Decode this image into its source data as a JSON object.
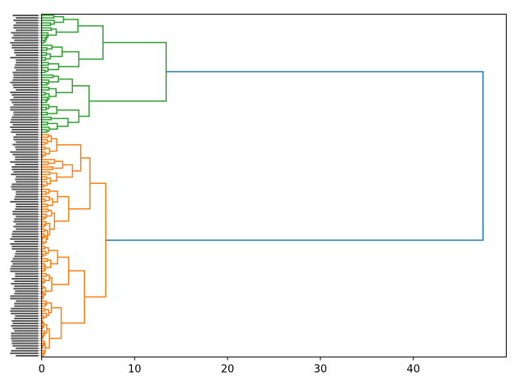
{
  "chart_data": {
    "type": "dendrogram",
    "orientation": "left",
    "title": "",
    "xlabel": "",
    "ylabel": "",
    "xlim": [
      0,
      50
    ],
    "x_ticks": [
      0,
      10,
      20,
      30,
      40
    ],
    "x_tick_labels": [
      "0",
      "10",
      "20",
      "30",
      "40"
    ],
    "grid": false,
    "leaf_labels_note": "",
    "colors": {
      "cluster_1": "#2ca02c",
      "cluster_2": "#ff7f0e",
      "above_threshold": "#1f77b4",
      "axes": "#000000"
    },
    "clusters": [
      {
        "name": "",
        "color": "#2ca02c",
        "n_leaves": 48,
        "merge_height": 13.4,
        "subclusters": [
          {
            "merge_height": 6.6,
            "children": [
              3.9,
              4.0
            ]
          },
          {
            "merge_height": 5.1,
            "children": [
              3.3,
              4.0
            ]
          }
        ]
      },
      {
        "name": "",
        "color": "#ff7f0e",
        "n_leaves": 90,
        "merge_height": 6.9,
        "subclusters": [
          {
            "merge_height": 5.2,
            "children": [
              4.2,
              2.9
            ]
          },
          {
            "merge_height": 4.6,
            "children": [
              2.9,
              2.1
            ]
          }
        ]
      }
    ],
    "root_merge_height": 47.5
  }
}
